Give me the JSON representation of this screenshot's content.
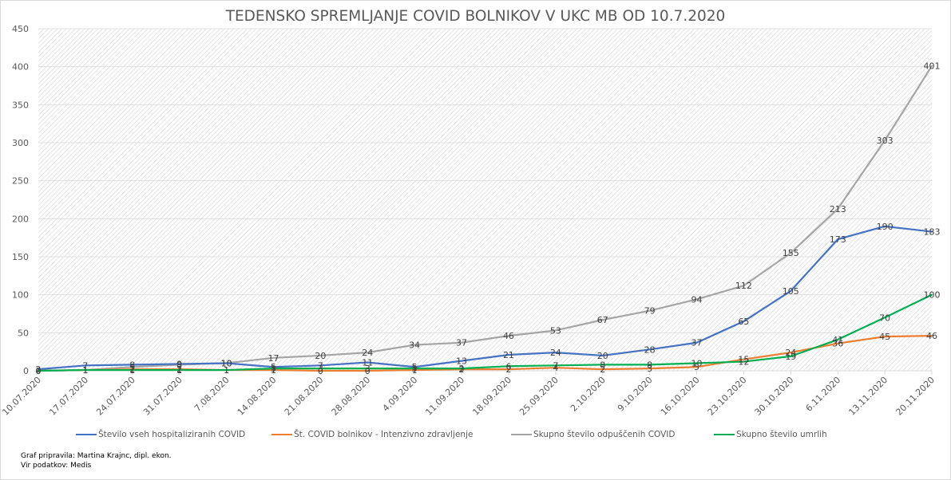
{
  "chart_data": {
    "type": "line",
    "title": "TEDENSKO SPREMLJANJE COVID BOLNIKOV V UKC MB OD 10.7.2020",
    "xlabel": "",
    "ylabel": "",
    "ylim": [
      0,
      450
    ],
    "yticks": [
      0,
      50,
      100,
      150,
      200,
      250,
      300,
      350,
      400,
      450
    ],
    "ytick_labels": [
      "0",
      "50",
      "100",
      "150",
      "200",
      "250",
      "300",
      "350",
      "400",
      "450"
    ],
    "grid": true,
    "legend_position": "bottom",
    "categories": [
      "10.07.2020",
      "17.07.2020",
      "24.07.2020",
      "31.07.2020",
      "7.08.2020",
      "14.08.2020",
      "21.08.2020",
      "28.08.2020",
      "4.09.2020",
      "11.09.2020",
      "18.09.2020",
      "25.09.2020",
      "2.10.2020",
      "9.10.2020",
      "16.10.2020",
      "23.10.2020",
      "30.10.2020",
      "6.11.2020",
      "13.11.2020",
      "20.11.2020"
    ],
    "series": [
      {
        "name": "Število vseh hospitaliziranih COVID",
        "color": "#4472c4",
        "values": [
          2,
          7,
          8,
          9,
          10,
          5,
          7,
          11,
          5,
          13,
          21,
          24,
          20,
          28,
          37,
          65,
          105,
          173,
          190,
          183
        ]
      },
      {
        "name": "Št. COVID bolnikov - Intenzivno zdravljenje",
        "color": "#ed7d31",
        "values": [
          0,
          1,
          2,
          2,
          1,
          1,
          0,
          0,
          1,
          2,
          2,
          4,
          2,
          3,
          5,
          15,
          24,
          36,
          45,
          46
        ]
      },
      {
        "name": "Skupno število odpuščenih COVID",
        "color": "#a5a5a5",
        "values": [
          0,
          1,
          5,
          8,
          10,
          17,
          20,
          24,
          34,
          37,
          46,
          53,
          67,
          79,
          94,
          112,
          155,
          213,
          303,
          401
        ]
      },
      {
        "name": "Skupno število umrlih",
        "color": "#00b050",
        "values": [
          0,
          1,
          1,
          1,
          1,
          3,
          3,
          3,
          3,
          3,
          6,
          7,
          8,
          8,
          10,
          12,
          19,
          41,
          70,
          100
        ]
      }
    ]
  },
  "legend": {
    "items": [
      "Število vseh hospitaliziranih COVID",
      "Št. COVID bolnikov - Intenzivno zdravljenje",
      "Skupno število odpuščenih COVID",
      "Skupno število umrlih"
    ]
  },
  "footer": {
    "author": "Graf pripravila: Martina Krajnc, dipl. ekon.",
    "source": "Vir podatkov: Medis"
  }
}
